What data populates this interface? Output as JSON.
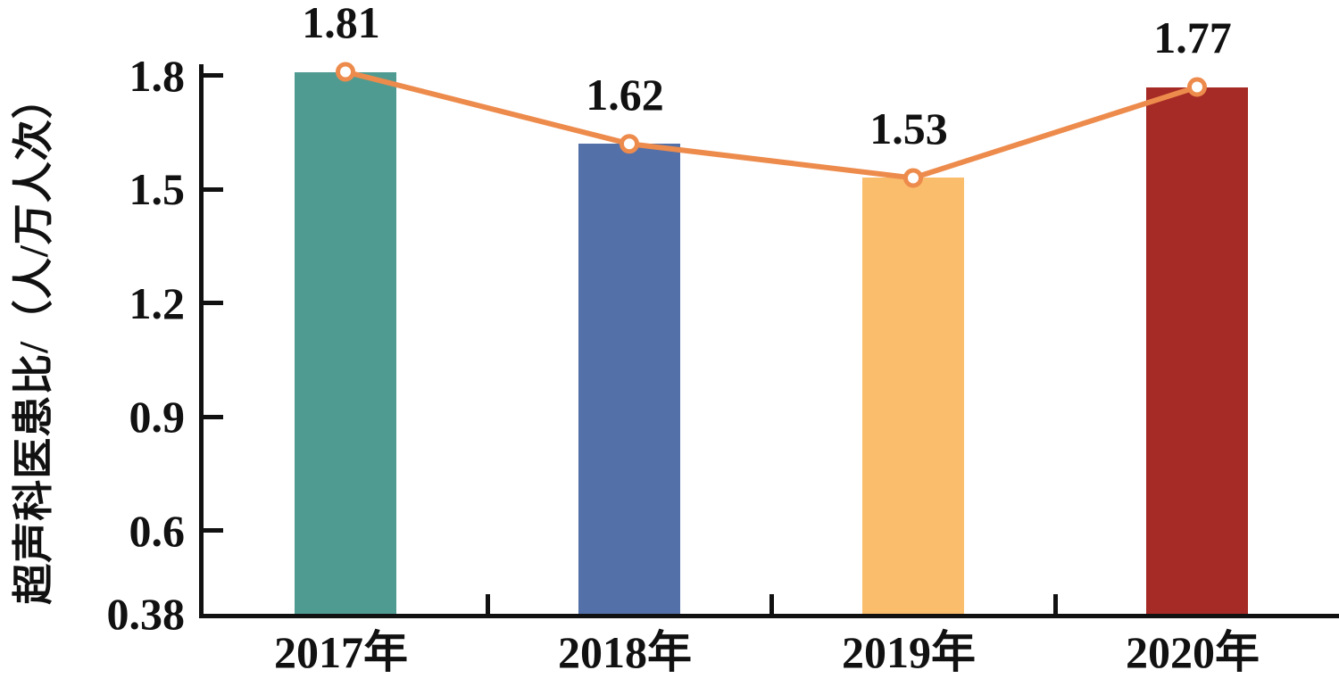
{
  "chart_data": {
    "type": "bar",
    "title": "",
    "xlabel": "",
    "ylabel": "超声科医患比/（人/万人次）",
    "categories": [
      "2017年",
      "2018年",
      "2019年",
      "2020年"
    ],
    "values": [
      1.81,
      1.62,
      1.53,
      1.77
    ],
    "value_labels": [
      "1.81",
      "1.62",
      "1.53",
      "1.77"
    ],
    "bar_colors": [
      "#4f9b92",
      "#5470a9",
      "#fabd6b",
      "#a62a25"
    ],
    "line_overlay": {
      "type": "line",
      "values": [
        1.81,
        1.62,
        1.53,
        1.77
      ],
      "color": "#ed8b4c",
      "marker": "open-circle",
      "marker_fill": "#ffffff"
    },
    "y_ticks": [
      "1.8",
      "1.5",
      "1.2",
      "0.9",
      "0.6",
      "0.38"
    ],
    "y_tick_values": [
      1.8,
      1.5,
      1.2,
      0.9,
      0.6,
      0.38
    ],
    "ylim": [
      0.38,
      1.83
    ],
    "grid": false,
    "legend": "none",
    "axis_color": "#111111"
  }
}
